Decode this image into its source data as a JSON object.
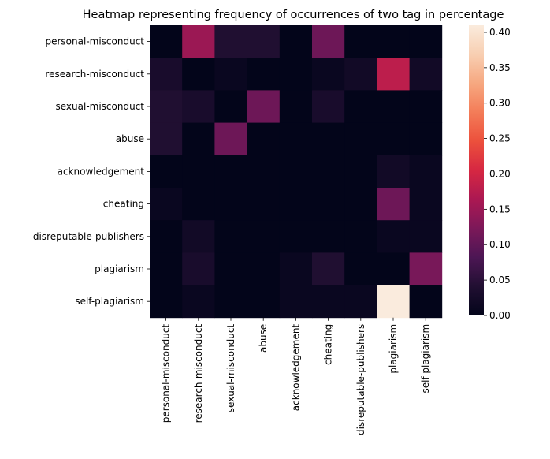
{
  "chart_data": {
    "type": "heatmap",
    "title": "Heatmap representing frequency of occurrences of two tag in percentage",
    "row_labels": [
      "personal-misconduct",
      "research-misconduct",
      "sexual-misconduct",
      "abuse",
      "acknowledgement",
      "cheating",
      "disreputable-publishers",
      "plagiarism",
      "self-plagiarism"
    ],
    "col_labels": [
      "personal-misconduct",
      "research-misconduct",
      "sexual-misconduct",
      "abuse",
      "acknowledgement",
      "cheating",
      "disreputable-publishers",
      "plagiarism",
      "self-plagiarism"
    ],
    "values": [
      [
        0.0,
        0.15,
        0.04,
        0.04,
        0.0,
        0.11,
        0.0,
        0.0,
        0.0
      ],
      [
        0.03,
        0.0,
        0.01,
        0.0,
        0.0,
        0.01,
        0.02,
        0.18,
        0.02
      ],
      [
        0.04,
        0.03,
        0.0,
        0.11,
        0.0,
        0.03,
        0.0,
        0.0,
        0.0
      ],
      [
        0.04,
        0.0,
        0.11,
        0.0,
        0.0,
        0.0,
        0.0,
        0.0,
        0.0
      ],
      [
        0.0,
        0.0,
        0.0,
        0.0,
        0.0,
        0.0,
        0.0,
        0.02,
        0.01
      ],
      [
        0.01,
        0.0,
        0.0,
        0.0,
        0.0,
        0.0,
        0.0,
        0.11,
        0.01
      ],
      [
        0.0,
        0.02,
        0.0,
        0.0,
        0.0,
        0.0,
        0.0,
        0.01,
        0.01
      ],
      [
        0.0,
        0.03,
        0.0,
        0.0,
        0.01,
        0.04,
        0.0,
        0.0,
        0.12
      ],
      [
        0.0,
        0.01,
        0.0,
        0.0,
        0.01,
        0.01,
        0.01,
        0.41,
        0.0
      ]
    ],
    "colorbar": {
      "vmin": 0.0,
      "vmax": 0.41,
      "ticks": [
        0.0,
        0.05,
        0.1,
        0.15,
        0.2,
        0.25,
        0.3,
        0.35,
        0.4
      ],
      "tick_labels": [
        "0.00",
        "0.05",
        "0.10",
        "0.15",
        "0.20",
        "0.25",
        "0.30",
        "0.35",
        "0.40"
      ]
    },
    "colormap": "rocket",
    "grid": false
  }
}
